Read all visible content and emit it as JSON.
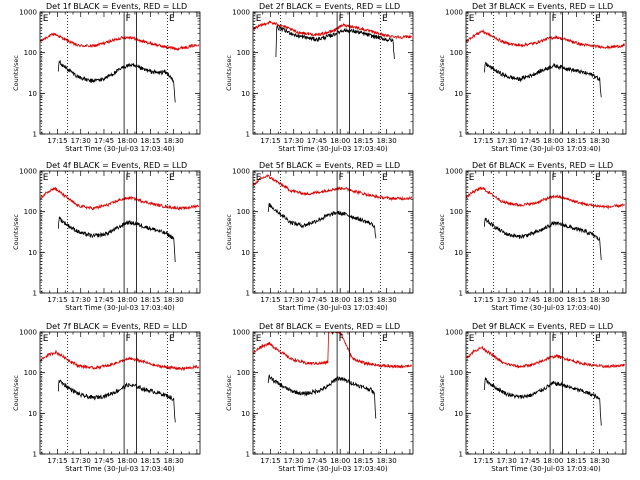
{
  "chart_data": {
    "type": "line",
    "yscale": "log",
    "ylim": [
      1,
      1000
    ],
    "y_tick_labels": [
      "1",
      "10",
      "100",
      "1000"
    ],
    "y_tick_values": [
      1,
      10,
      100,
      1000
    ],
    "x_tick_labels": [
      "17:15",
      "17:30",
      "17:45",
      "18:00",
      "18:15",
      "18:30"
    ],
    "x_tick_minutes": [
      15,
      30,
      45,
      60,
      75,
      90
    ],
    "xlim_minutes": [
      3.7,
      107
    ],
    "ylabel": "Counts/sec",
    "xlabel": "Start Time (30-Jul-03 17:03:40)",
    "markers": [
      {
        "label": "E",
        "kind": "dotted",
        "minute": 4.5
      },
      {
        "label": "",
        "kind": "dotted",
        "minute": 21.5
      },
      {
        "label": "F",
        "kind": "solid",
        "minute": 58
      },
      {
        "label": "",
        "kind": "solid",
        "minute": 66
      },
      {
        "label": "E",
        "kind": "dotted",
        "minute": 86
      }
    ],
    "series_names": [
      "Events",
      "LLD"
    ],
    "series_colors": {
      "Events": "#000000",
      "LLD": "#dd0000"
    },
    "panels": [
      {
        "title": "Det 1f BLACK = Events, RED = LLD",
        "series": [
          {
            "name": "LLD",
            "x": [
              4,
              8,
              13,
              20,
              28,
              38,
              48,
              56,
              62,
              68,
              76,
              84,
              92,
              100,
              106
            ],
            "y": [
              190,
              240,
              290,
              210,
              150,
              145,
              185,
              230,
              240,
              200,
              165,
              140,
              125,
              140,
              160
            ]
          },
          {
            "name": "Events",
            "x": [
              15.5,
              16,
              18,
              22,
              28,
              36,
              44,
              52,
              58,
              62,
              68,
              74,
              80,
              84,
              88,
              90,
              91
            ],
            "y": [
              35,
              65,
              50,
              38,
              26,
              20,
              22,
              32,
              45,
              50,
              42,
              35,
              32,
              34,
              26,
              18,
              6
            ]
          }
        ]
      },
      {
        "title": "Det 2f BLACK = Events, RED = LLD",
        "series": [
          {
            "name": "LLD",
            "x": [
              4,
              14,
              22,
              32,
              45,
              55,
              62,
              70,
              80,
              90,
              100,
              106
            ],
            "y": [
              390,
              560,
              470,
              320,
              270,
              340,
              480,
              420,
              330,
              260,
              240,
              250
            ]
          },
          {
            "name": "Events",
            "x": [
              18.5,
              19,
              22,
              32,
              45,
              55,
              62,
              70,
              80,
              90,
              94,
              95
            ],
            "y": [
              80,
              420,
              380,
              260,
              210,
              270,
              360,
              330,
              260,
              210,
              200,
              70
            ]
          }
        ]
      },
      {
        "title": "Det 3f BLACK = Events, RED = LLD",
        "series": [
          {
            "name": "LLD",
            "x": [
              4,
              8,
              14,
              20,
              28,
              38,
              48,
              56,
              62,
              70,
              78,
              86,
              96,
              106
            ],
            "y": [
              190,
              250,
              340,
              260,
              180,
              150,
              170,
              220,
              240,
              200,
              160,
              145,
              135,
              150
            ]
          },
          {
            "name": "Events",
            "x": [
              15.5,
              16,
              19,
              24,
              30,
              38,
              46,
              54,
              60,
              66,
              72,
              80,
              86,
              90,
              91
            ],
            "y": [
              30,
              55,
              45,
              34,
              26,
              22,
              28,
              38,
              48,
              44,
              38,
              32,
              28,
              22,
              8
            ]
          }
        ]
      },
      {
        "title": "Det 4f BLACK = Events, RED = LLD",
        "series": [
          {
            "name": "LLD",
            "x": [
              4,
              8,
              13,
              20,
              28,
              38,
              48,
              56,
              62,
              70,
              78,
              86,
              96,
              106
            ],
            "y": [
              210,
              300,
              380,
              240,
              140,
              120,
              150,
              200,
              220,
              180,
              150,
              130,
              120,
              140
            ]
          },
          {
            "name": "Events",
            "x": [
              15.5,
              16,
              19,
              24,
              30,
              38,
              46,
              54,
              60,
              66,
              72,
              80,
              86,
              90,
              91
            ],
            "y": [
              40,
              70,
              55,
              40,
              30,
              25,
              28,
              40,
              55,
              50,
              42,
              34,
              28,
              22,
              6
            ]
          }
        ]
      },
      {
        "title": "Det 5f BLACK = Events, RED = LLD",
        "series": [
          {
            "name": "LLD",
            "x": [
              4,
              8,
              13,
              20,
              28,
              38,
              48,
              56,
              62,
              68,
              76,
              84,
              94,
              106
            ],
            "y": [
              450,
              620,
              760,
              520,
              330,
              270,
              310,
              360,
              380,
              330,
              270,
              230,
              210,
              215
            ]
          },
          {
            "name": "Events",
            "x": [
              13.5,
              14,
              17,
              22,
              28,
              36,
              44,
              52,
              58,
              64,
              70,
              76,
              80,
              82,
              83
            ],
            "y": [
              90,
              150,
              120,
              85,
              55,
              45,
              58,
              80,
              95,
              85,
              70,
              58,
              50,
              45,
              22
            ]
          }
        ]
      },
      {
        "title": "Det 6f BLACK = Events, RED = LLD",
        "series": [
          {
            "name": "LLD",
            "x": [
              4,
              8,
              14,
              20,
              28,
              38,
              48,
              56,
              62,
              70,
              78,
              86,
              96,
              106
            ],
            "y": [
              230,
              300,
              390,
              270,
              170,
              145,
              160,
              210,
              240,
              200,
              160,
              140,
              130,
              145
            ]
          },
          {
            "name": "Events",
            "x": [
              15.5,
              16,
              19,
              24,
              30,
              38,
              46,
              54,
              60,
              66,
              72,
              80,
              86,
              90,
              91
            ],
            "y": [
              40,
              65,
              52,
              38,
              28,
              24,
              28,
              38,
              52,
              48,
              40,
              33,
              27,
              20,
              7
            ]
          }
        ]
      },
      {
        "title": "Det 7f BLACK = Events, RED = LLD",
        "series": [
          {
            "name": "LLD",
            "x": [
              4,
              8,
              14,
              20,
              28,
              38,
              48,
              56,
              62,
              70,
              78,
              86,
              96,
              106
            ],
            "y": [
              200,
              260,
              320,
              230,
              150,
              130,
              150,
              190,
              220,
              190,
              150,
              135,
              125,
              140
            ]
          },
          {
            "name": "Events",
            "x": [
              15.5,
              16,
              19,
              24,
              30,
              38,
              46,
              54,
              60,
              66,
              72,
              80,
              86,
              90,
              91
            ],
            "y": [
              35,
              65,
              52,
              38,
              28,
              24,
              27,
              36,
              50,
              46,
              38,
              32,
              27,
              22,
              6
            ]
          }
        ]
      },
      {
        "title": "Det 8f BLACK = Events, RED = LLD",
        "series": [
          {
            "name": "LLD",
            "x": [
              4,
              8,
              14,
              20,
              28,
              38,
              48,
              52,
              52.5,
              60,
              68,
              76,
              86,
              96,
              106
            ],
            "y": [
              300,
              420,
              520,
              360,
              220,
              170,
              170,
              180,
              1000,
              1000,
              220,
              170,
              150,
              140,
              150
            ]
          },
          {
            "name": "Events",
            "x": [
              13.5,
              14,
              17,
              22,
              28,
              36,
              44,
              52,
              58,
              62,
              68,
              74,
              80,
              82,
              83
            ],
            "y": [
              50,
              80,
              65,
              48,
              36,
              30,
              34,
              45,
              75,
              68,
              55,
              45,
              38,
              30,
              8
            ]
          }
        ]
      },
      {
        "title": "Det 9f BLACK = Events, RED = LLD",
        "series": [
          {
            "name": "LLD",
            "x": [
              4,
              8,
              14,
              20,
              28,
              38,
              48,
              56,
              62,
              70,
              78,
              86,
              96,
              106
            ],
            "y": [
              230,
              320,
              420,
              280,
              170,
              140,
              160,
              220,
              260,
              210,
              170,
              150,
              140,
              155
            ]
          },
          {
            "name": "Events",
            "x": [
              15.5,
              16,
              19,
              24,
              30,
              38,
              46,
              54,
              60,
              66,
              72,
              80,
              86,
              90,
              91
            ],
            "y": [
              40,
              70,
              55,
              40,
              30,
              25,
              28,
              40,
              55,
              50,
              42,
              34,
              28,
              22,
              5
            ]
          }
        ]
      }
    ]
  }
}
